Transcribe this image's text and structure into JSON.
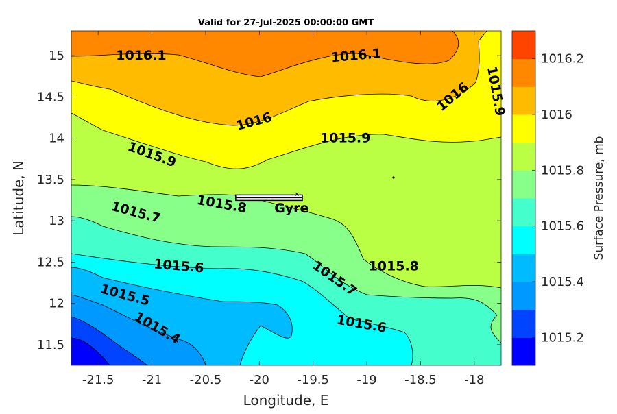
{
  "chart_data": {
    "type": "contour",
    "title": "Valid for 27-Jul-2025 00:00:00 GMT",
    "xlabel": "Longitude, E",
    "ylabel": "Latitude, N",
    "xlim": [
      -21.75,
      -17.75
    ],
    "ylim": [
      11.25,
      15.3
    ],
    "xticks": [
      -21.5,
      -21,
      -20.5,
      -20,
      -19.5,
      -19,
      -18.5,
      -18
    ],
    "xtick_labels": [
      "-21.5",
      "-21",
      "-20.5",
      "-20",
      "-19.5",
      "-19",
      "-18.5",
      "-18"
    ],
    "yticks": [
      11.5,
      12,
      12.5,
      13,
      13.5,
      14,
      14.5,
      15
    ],
    "ytick_labels": [
      "11.5",
      "12",
      "12.5",
      "13",
      "13.5",
      "14",
      "14.5",
      "15"
    ],
    "colorbar": {
      "label": "Surface Pressure, mb",
      "range": [
        1015.1,
        1016.3
      ],
      "levels": [
        1015.1,
        1015.2,
        1015.3,
        1015.4,
        1015.5,
        1015.6,
        1015.7,
        1015.8,
        1015.9,
        1016.0,
        1016.1,
        1016.2,
        1016.3
      ],
      "colors": [
        "#0000ff",
        "#0044ff",
        "#0099ff",
        "#00bbff",
        "#00ffff",
        "#44ffcc",
        "#88ff88",
        "#bbff44",
        "#ffff00",
        "#ffbb00",
        "#ff8800",
        "#ff4400",
        "#ff0000"
      ],
      "tick_values": [
        1015.2,
        1015.4,
        1015.6,
        1015.8,
        1016,
        1016.2
      ],
      "tick_labels": [
        "1015.2",
        "1015.4",
        "1015.6",
        "1015.8",
        "1016",
        "1016.2"
      ]
    },
    "contour_labels": [
      {
        "text": "1016.1",
        "lon": -21.1,
        "lat": 15.0,
        "angle": 0
      },
      {
        "text": "1016.1",
        "lon": -19.1,
        "lat": 15.0,
        "angle": -5
      },
      {
        "text": "1016",
        "lon": -20.05,
        "lat": 14.2,
        "angle": -15
      },
      {
        "text": "1016",
        "lon": -18.2,
        "lat": 14.5,
        "angle": -40
      },
      {
        "text": "1015.9",
        "lon": -17.8,
        "lat": 14.57,
        "angle": 80
      },
      {
        "text": "1015.9",
        "lon": -21.0,
        "lat": 13.8,
        "angle": 20
      },
      {
        "text": "1015.9",
        "lon": -19.2,
        "lat": 14.0,
        "angle": 0
      },
      {
        "text": "1015.8",
        "lon": -20.35,
        "lat": 13.2,
        "angle": 10
      },
      {
        "text": "1015.8",
        "lon": -18.75,
        "lat": 12.45,
        "angle": 0
      },
      {
        "text": "1015.7",
        "lon": -21.15,
        "lat": 13.1,
        "angle": 15
      },
      {
        "text": "1015.7",
        "lon": -19.3,
        "lat": 12.3,
        "angle": 35
      },
      {
        "text": "1015.6",
        "lon": -20.75,
        "lat": 12.45,
        "angle": 5
      },
      {
        "text": "1015.6",
        "lon": -19.05,
        "lat": 11.75,
        "angle": 10
      },
      {
        "text": "1015.5",
        "lon": -21.25,
        "lat": 12.1,
        "angle": 15
      },
      {
        "text": "1015.4",
        "lon": -20.95,
        "lat": 11.7,
        "angle": 30
      }
    ],
    "annotations": [
      {
        "text": "Gyre",
        "lon": -19.7,
        "lat": 13.15
      }
    ],
    "markers": [
      {
        "name": "Gyre",
        "lon_start": -20.22,
        "lon_end": -19.6,
        "lat": 13.28
      }
    ]
  }
}
